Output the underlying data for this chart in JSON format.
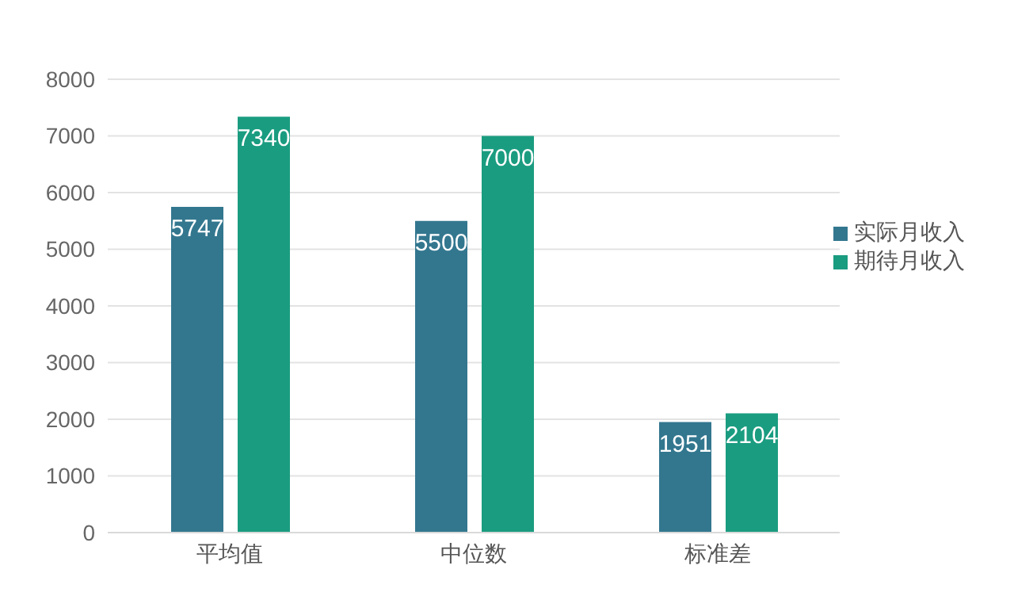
{
  "chart_data": {
    "type": "bar",
    "categories": [
      "平均值",
      "中位数",
      "标准差"
    ],
    "series": [
      {
        "name": "实际月收入",
        "color": "#33778f",
        "values": [
          5747,
          5500,
          1951
        ]
      },
      {
        "name": "期待月收入",
        "color": "#1a9c80",
        "values": [
          7340,
          7000,
          2104
        ]
      }
    ],
    "ylim": [
      0,
      8000
    ],
    "yticks": [
      0,
      1000,
      2000,
      3000,
      4000,
      5000,
      6000,
      7000,
      8000
    ],
    "grid": "y",
    "legend": "right",
    "data_labels": true
  }
}
